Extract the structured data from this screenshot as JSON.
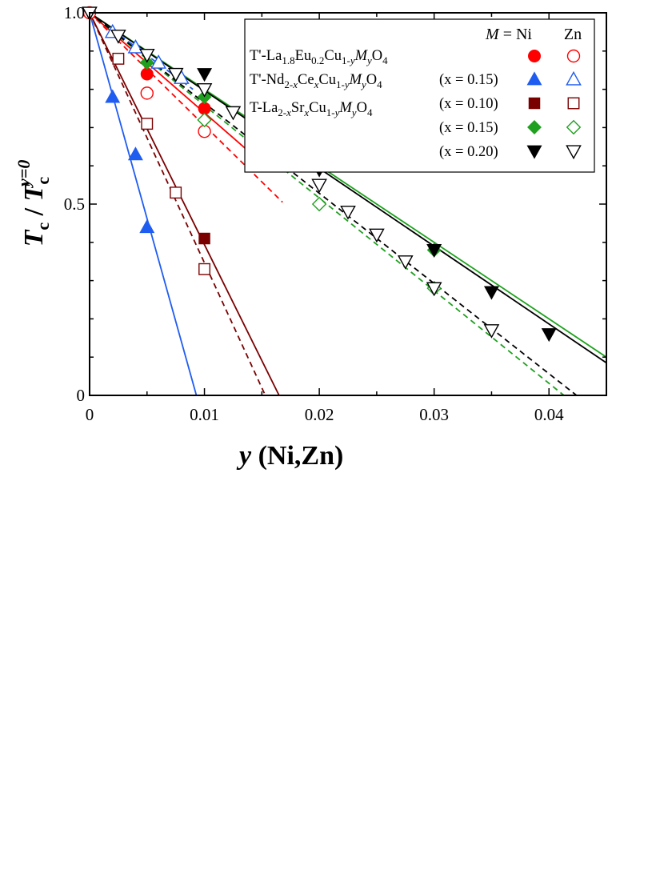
{
  "chart_data": {
    "type": "scatter",
    "title": "",
    "xlabel": "y (Ni,Zn)",
    "ylabel": "Tc / Tc^(y=0)",
    "xlim": [
      0,
      0.045
    ],
    "ylim": [
      0,
      1.0
    ],
    "grid": false,
    "x_ticks": [
      {
        "value": 0,
        "label": "0"
      },
      {
        "value": 0.01,
        "label": "0.01"
      },
      {
        "value": 0.02,
        "label": "0.02"
      },
      {
        "value": 0.03,
        "label": "0.03"
      },
      {
        "value": 0.04,
        "label": "0.04"
      }
    ],
    "y_ticks": [
      {
        "value": 0,
        "label": "0"
      },
      {
        "value": 0.5,
        "label": "0.5"
      },
      {
        "value": 1.0,
        "label": "1.0"
      }
    ],
    "axis_title": {
      "y_main": "T",
      "y_sub": "c",
      "y_sep": " / ",
      "y_main2": "T",
      "y_sub2": "c",
      "y_sup2": "y=0",
      "x_var": "y",
      "x_rest": " (Ni,Zn)"
    },
    "legend": {
      "placement": "top-right",
      "header_M": "M",
      "header_eq": " = Ni",
      "header_zn": "Zn",
      "compounds": [
        {
          "parts": [
            {
              "t": "T'-La"
            },
            {
              "t": "1.8",
              "sub": true
            },
            {
              "t": "Eu"
            },
            {
              "t": "0.2",
              "sub": true
            },
            {
              "t": "Cu"
            },
            {
              "t": "1-",
              "sub": true
            },
            {
              "t": "y",
              "sub": true,
              "italic": true
            },
            {
              "t": "M",
              "italic": true
            },
            {
              "t": "y",
              "sub": true,
              "italic": true
            },
            {
              "t": "O"
            },
            {
              "t": "4",
              "sub": true
            }
          ]
        },
        {
          "parts": [
            {
              "t": "T'-Nd"
            },
            {
              "t": "2-",
              "sub": true
            },
            {
              "t": "x",
              "sub": true,
              "italic": true
            },
            {
              "t": "Ce"
            },
            {
              "t": "x",
              "sub": true,
              "italic": true
            },
            {
              "t": "Cu"
            },
            {
              "t": "1-",
              "sub": true
            },
            {
              "t": "y",
              "sub": true,
              "italic": true
            },
            {
              "t": "M",
              "italic": true
            },
            {
              "t": "y",
              "sub": true,
              "italic": true
            },
            {
              "t": "O"
            },
            {
              "t": "4",
              "sub": true
            }
          ]
        },
        {
          "parts": [
            {
              "t": "T-La"
            },
            {
              "t": "2-",
              "sub": true
            },
            {
              "t": "x",
              "sub": true,
              "italic": true
            },
            {
              "t": "Sr"
            },
            {
              "t": "x",
              "sub": true,
              "italic": true
            },
            {
              "t": "Cu"
            },
            {
              "t": "1-",
              "sub": true
            },
            {
              "t": "y",
              "sub": true,
              "italic": true
            },
            {
              "t": "M",
              "italic": true
            },
            {
              "t": "y",
              "sub": true,
              "italic": true
            },
            {
              "t": "O"
            },
            {
              "t": "4",
              "sub": true
            }
          ]
        }
      ],
      "x_labels": [
        "(x = 0.15)",
        "(x = 0.10)",
        "(x = 0.15)",
        "(x = 0.20)"
      ]
    },
    "series": [
      {
        "name": "T'-LECO Ni",
        "marker": "circle",
        "filled": true,
        "color": "#ff0000",
        "points": [
          [
            0,
            1.0
          ],
          [
            0.005,
            0.84
          ],
          [
            0.01,
            0.75
          ],
          [
            0.015,
            0.7
          ]
        ]
      },
      {
        "name": "T'-LECO Zn",
        "marker": "circle",
        "filled": false,
        "color": "#ff0000",
        "points": [
          [
            0,
            1.0
          ],
          [
            0.005,
            0.79
          ],
          [
            0.01,
            0.69
          ],
          [
            0.015,
            0.72
          ]
        ]
      },
      {
        "name": "T'-NCCO x=0.15 Ni",
        "marker": "triangle-up",
        "filled": true,
        "color": "#1f5cf0",
        "points": [
          [
            0.002,
            0.78
          ],
          [
            0.004,
            0.63
          ],
          [
            0.005,
            0.44
          ]
        ]
      },
      {
        "name": "T'-NCCO x=0.15 Zn",
        "marker": "triangle-up",
        "filled": false,
        "color": "#1f5cf0",
        "points": [
          [
            0.002,
            0.95
          ],
          [
            0.004,
            0.91
          ],
          [
            0.006,
            0.87
          ],
          [
            0.008,
            0.83
          ]
        ]
      },
      {
        "name": "T-LSCO x=0.10 Ni",
        "marker": "square",
        "filled": true,
        "color": "#7a0000",
        "points": [
          [
            0.01,
            0.41
          ]
        ]
      },
      {
        "name": "T-LSCO x=0.10 Zn",
        "marker": "square",
        "filled": false,
        "color": "#7a0000",
        "points": [
          [
            0.0025,
            0.88
          ],
          [
            0.005,
            0.71
          ],
          [
            0.0075,
            0.53
          ],
          [
            0.01,
            0.33
          ]
        ]
      },
      {
        "name": "T-LSCO x=0.15 Ni",
        "marker": "diamond",
        "filled": true,
        "color": "#1fa01f",
        "points": [
          [
            0.005,
            0.87
          ],
          [
            0.01,
            0.78
          ],
          [
            0.02,
            0.64
          ],
          [
            0.03,
            0.38
          ]
        ]
      },
      {
        "name": "T-LSCO x=0.15 Zn",
        "marker": "diamond",
        "filled": false,
        "color": "#1fa01f",
        "points": [
          [
            0.01,
            0.72
          ],
          [
            0.015,
            0.64
          ],
          [
            0.02,
            0.5
          ],
          [
            0.03,
            0.28
          ]
        ]
      },
      {
        "name": "T-LSCO x=0.20 Ni",
        "marker": "triangle-down",
        "filled": true,
        "color": "#000000",
        "points": [
          [
            0.01,
            0.84
          ],
          [
            0.02,
            0.59
          ],
          [
            0.03,
            0.38
          ],
          [
            0.035,
            0.27
          ],
          [
            0.04,
            0.16
          ]
        ]
      },
      {
        "name": "T-LSCO x=0.20 Zn",
        "marker": "triangle-down",
        "filled": false,
        "color": "#000000",
        "points": [
          [
            0,
            1.0
          ],
          [
            0.0025,
            0.94
          ],
          [
            0.005,
            0.89
          ],
          [
            0.0075,
            0.84
          ],
          [
            0.01,
            0.8
          ],
          [
            0.0125,
            0.74
          ],
          [
            0.0175,
            0.62
          ],
          [
            0.02,
            0.55
          ],
          [
            0.0225,
            0.48
          ],
          [
            0.025,
            0.42
          ],
          [
            0.0275,
            0.35
          ],
          [
            0.03,
            0.28
          ],
          [
            0.035,
            0.17
          ]
        ]
      }
    ],
    "fit_lines": [
      {
        "name": "LECO Ni fit",
        "color": "#ff0000",
        "dashed": false,
        "from": [
          0,
          1.0
        ],
        "to": [
          0.0153,
          0.6
        ]
      },
      {
        "name": "LECO Zn fit",
        "color": "#ff0000",
        "dashed": true,
        "from": [
          0,
          1.0
        ],
        "to": [
          0.0168,
          0.505
        ]
      },
      {
        "name": "NCCO Ni fit",
        "color": "#1f5cf0",
        "dashed": false,
        "from": [
          0,
          1.0
        ],
        "to": [
          0.0093,
          0.0
        ]
      },
      {
        "name": "NCCO Zn fit",
        "color": "#1f5cf0",
        "dashed": true,
        "from": [
          0,
          1.0
        ],
        "to": [
          0.009,
          0.8
        ]
      },
      {
        "name": "LSCO x=0.10 Ni fit",
        "color": "#7a0000",
        "dashed": false,
        "from": [
          0,
          1.0
        ],
        "to": [
          0.0165,
          0.0
        ]
      },
      {
        "name": "LSCO x=0.10 Zn fit",
        "color": "#7a0000",
        "dashed": true,
        "from": [
          0,
          1.0
        ],
        "to": [
          0.0153,
          0.0
        ]
      },
      {
        "name": "LSCO x=0.15 Ni fit",
        "color": "#1fa01f",
        "dashed": false,
        "from": [
          0,
          1.0
        ],
        "to": [
          0.045,
          0.1
        ]
      },
      {
        "name": "LSCO x=0.15 Zn fit",
        "color": "#1fa01f",
        "dashed": true,
        "from": [
          0,
          1.0
        ],
        "to": [
          0.0413,
          0.0
        ]
      },
      {
        "name": "LSCO x=0.20 Ni fit",
        "color": "#000000",
        "dashed": false,
        "from": [
          0,
          1.0
        ],
        "to": [
          0.045,
          0.085
        ]
      },
      {
        "name": "LSCO x=0.20 Zn fit",
        "color": "#000000",
        "dashed": true,
        "from": [
          0,
          1.0
        ],
        "to": [
          0.0424,
          0.0
        ]
      }
    ]
  }
}
